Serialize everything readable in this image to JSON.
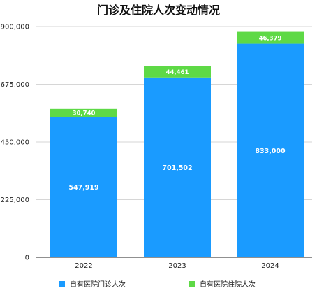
{
  "chart_data": {
    "type": "bar",
    "stacked": true,
    "title": "门诊及住院人次变动情况",
    "categories": [
      "2022",
      "2023",
      "2024"
    ],
    "series": [
      {
        "name": "自有医院门诊人次",
        "values": [
          547919,
          701502,
          833000
        ],
        "labels": [
          "547,919",
          "701,502",
          "833,000"
        ],
        "color": "#1a9bff"
      },
      {
        "name": "自有医院住院人次",
        "values": [
          30740,
          44461,
          46379
        ],
        "labels": [
          "30,740",
          "44,461",
          "46,379"
        ],
        "color": "#5ed946"
      }
    ],
    "ylim": [
      0,
      900000
    ],
    "yticks": [
      "0",
      "225,000",
      "450,000",
      "675,000",
      "900,000"
    ],
    "ytick_values": [
      0,
      225000,
      450000,
      675000,
      900000
    ],
    "grid": true,
    "legend_position": "bottom"
  }
}
